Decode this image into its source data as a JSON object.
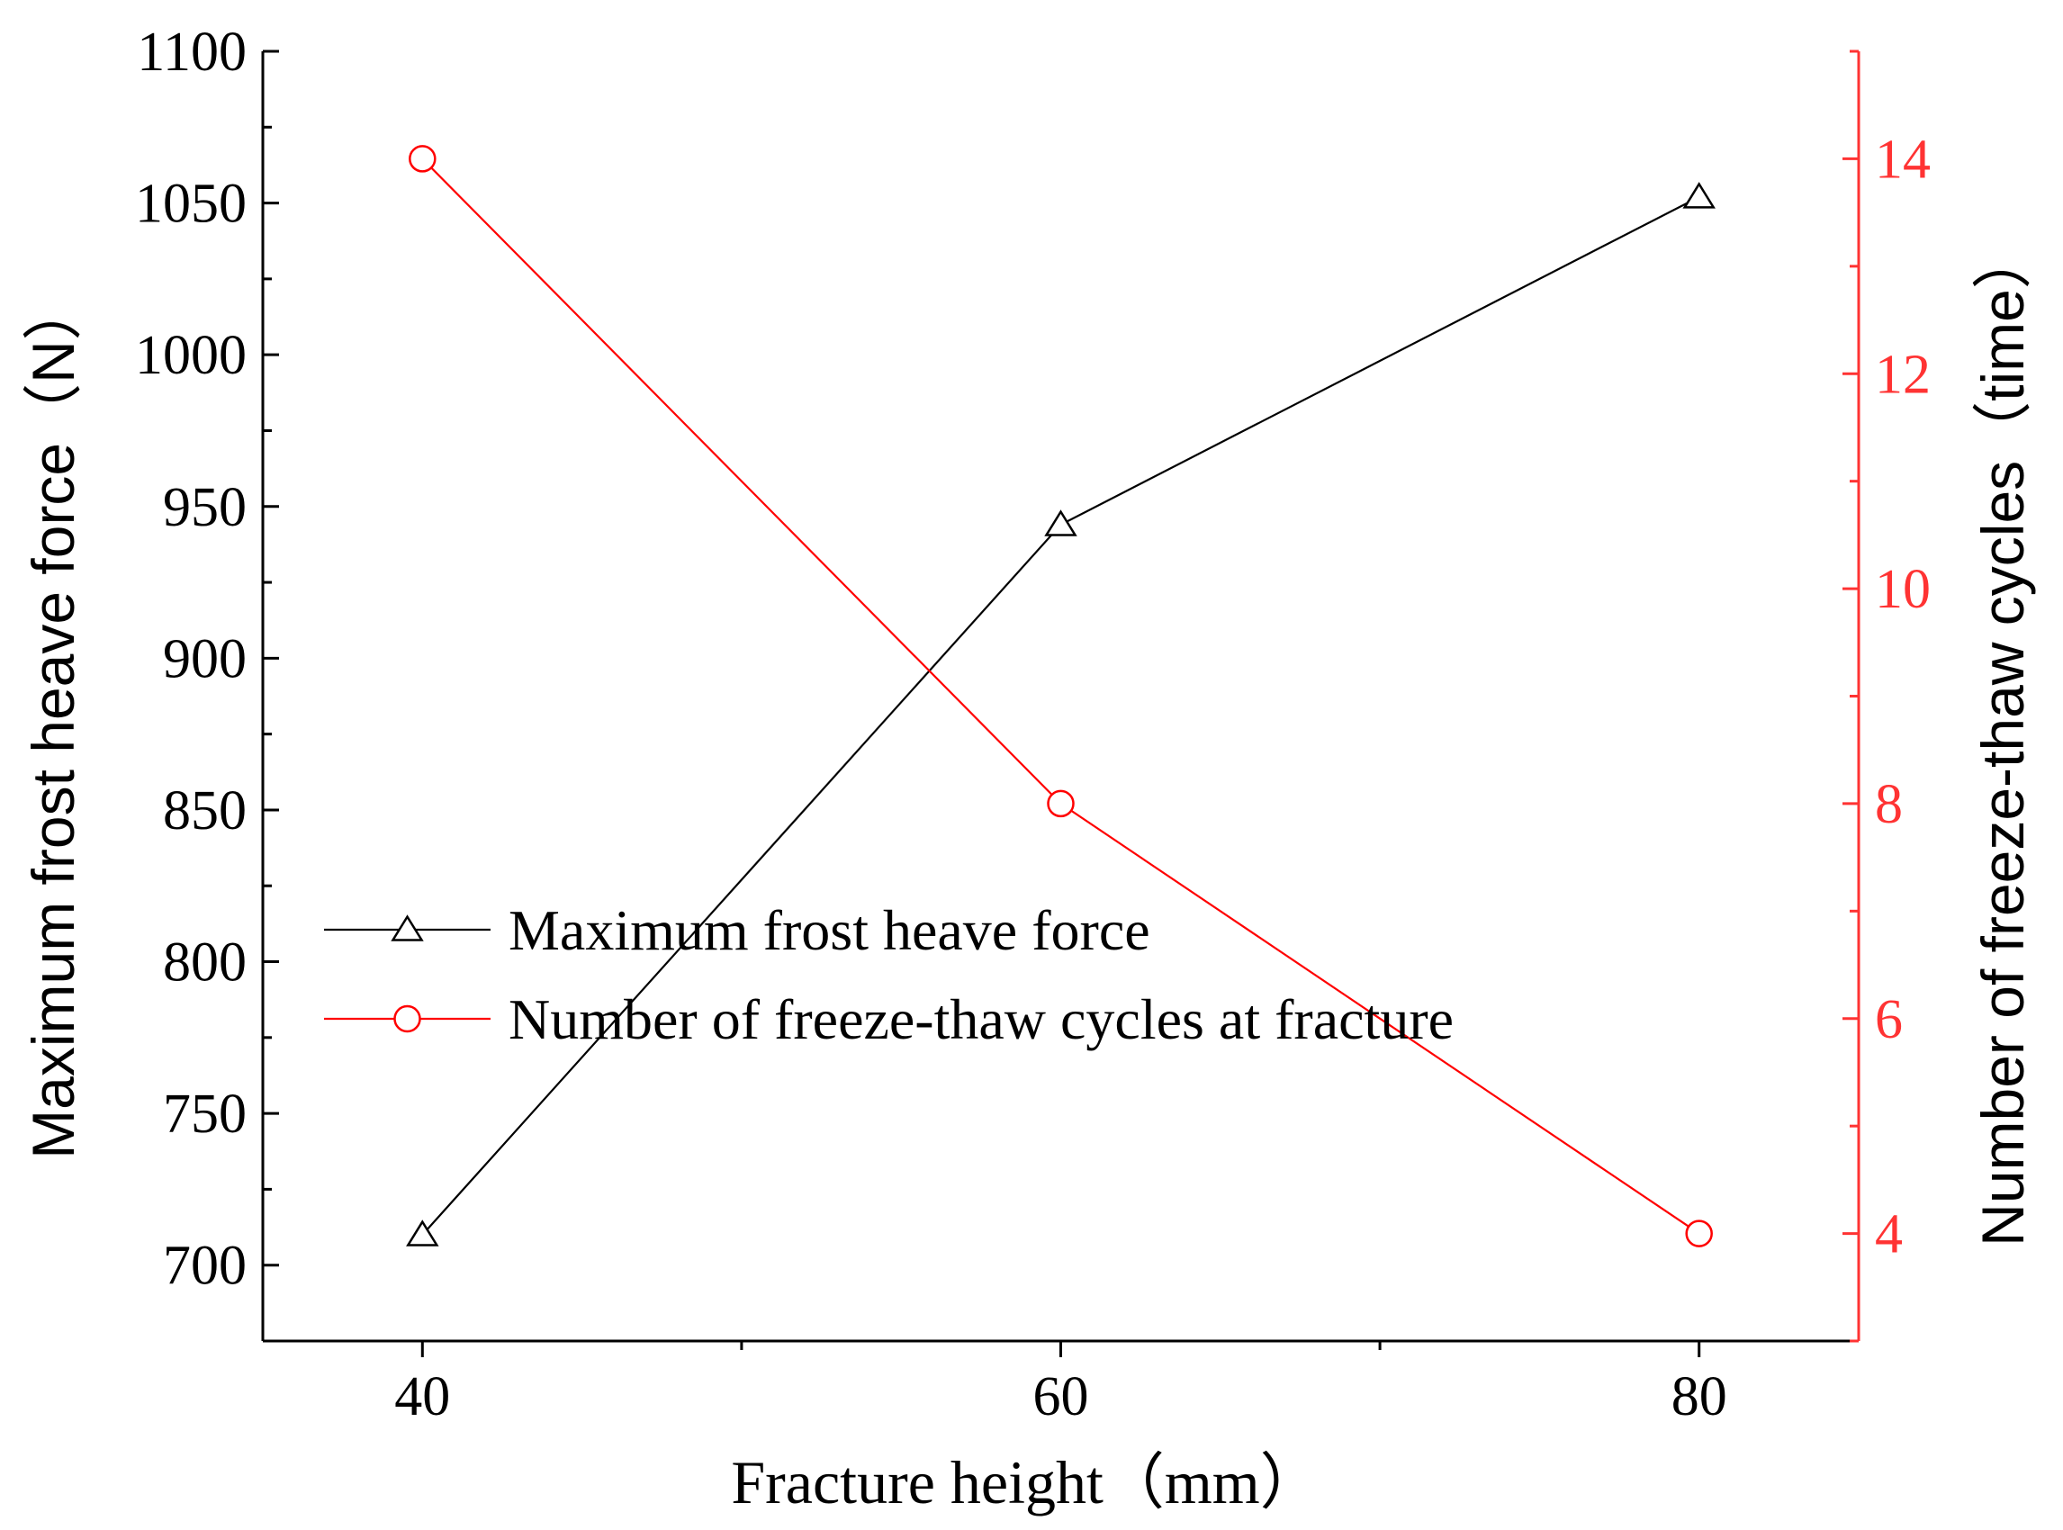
{
  "chart_data": {
    "type": "line",
    "xlabel": "Fracture height（mm）",
    "ylabel_left": "Maximum frost heave force（N）",
    "ylabel_right": "Number of freeze-thaw cycles（time）",
    "xlim": [
      35,
      85
    ],
    "x_ticks": [
      40,
      60,
      80
    ],
    "ylim_left": [
      675,
      1100
    ],
    "y_ticks_left": [
      700,
      750,
      800,
      850,
      900,
      950,
      1000,
      1050,
      1100
    ],
    "ylim_right": [
      3,
      15
    ],
    "y_ticks_right": [
      4,
      6,
      8,
      10,
      12,
      14
    ],
    "grid": false,
    "legend_position": "center-left",
    "series": [
      {
        "name": "Maximum frost heave force",
        "axis": "left",
        "marker": "triangle",
        "color": "#000000",
        "x": [
          40,
          60,
          80
        ],
        "values": [
          710,
          944,
          1052
        ]
      },
      {
        "name": "Number of freeze-thaw cycles at fracture",
        "axis": "right",
        "marker": "circle",
        "color": "#ff0000",
        "x": [
          40,
          60,
          80
        ],
        "values": [
          14,
          8,
          4
        ]
      }
    ],
    "colors": {
      "left_axis": "#000000",
      "right_axis": "#ff3333"
    }
  }
}
